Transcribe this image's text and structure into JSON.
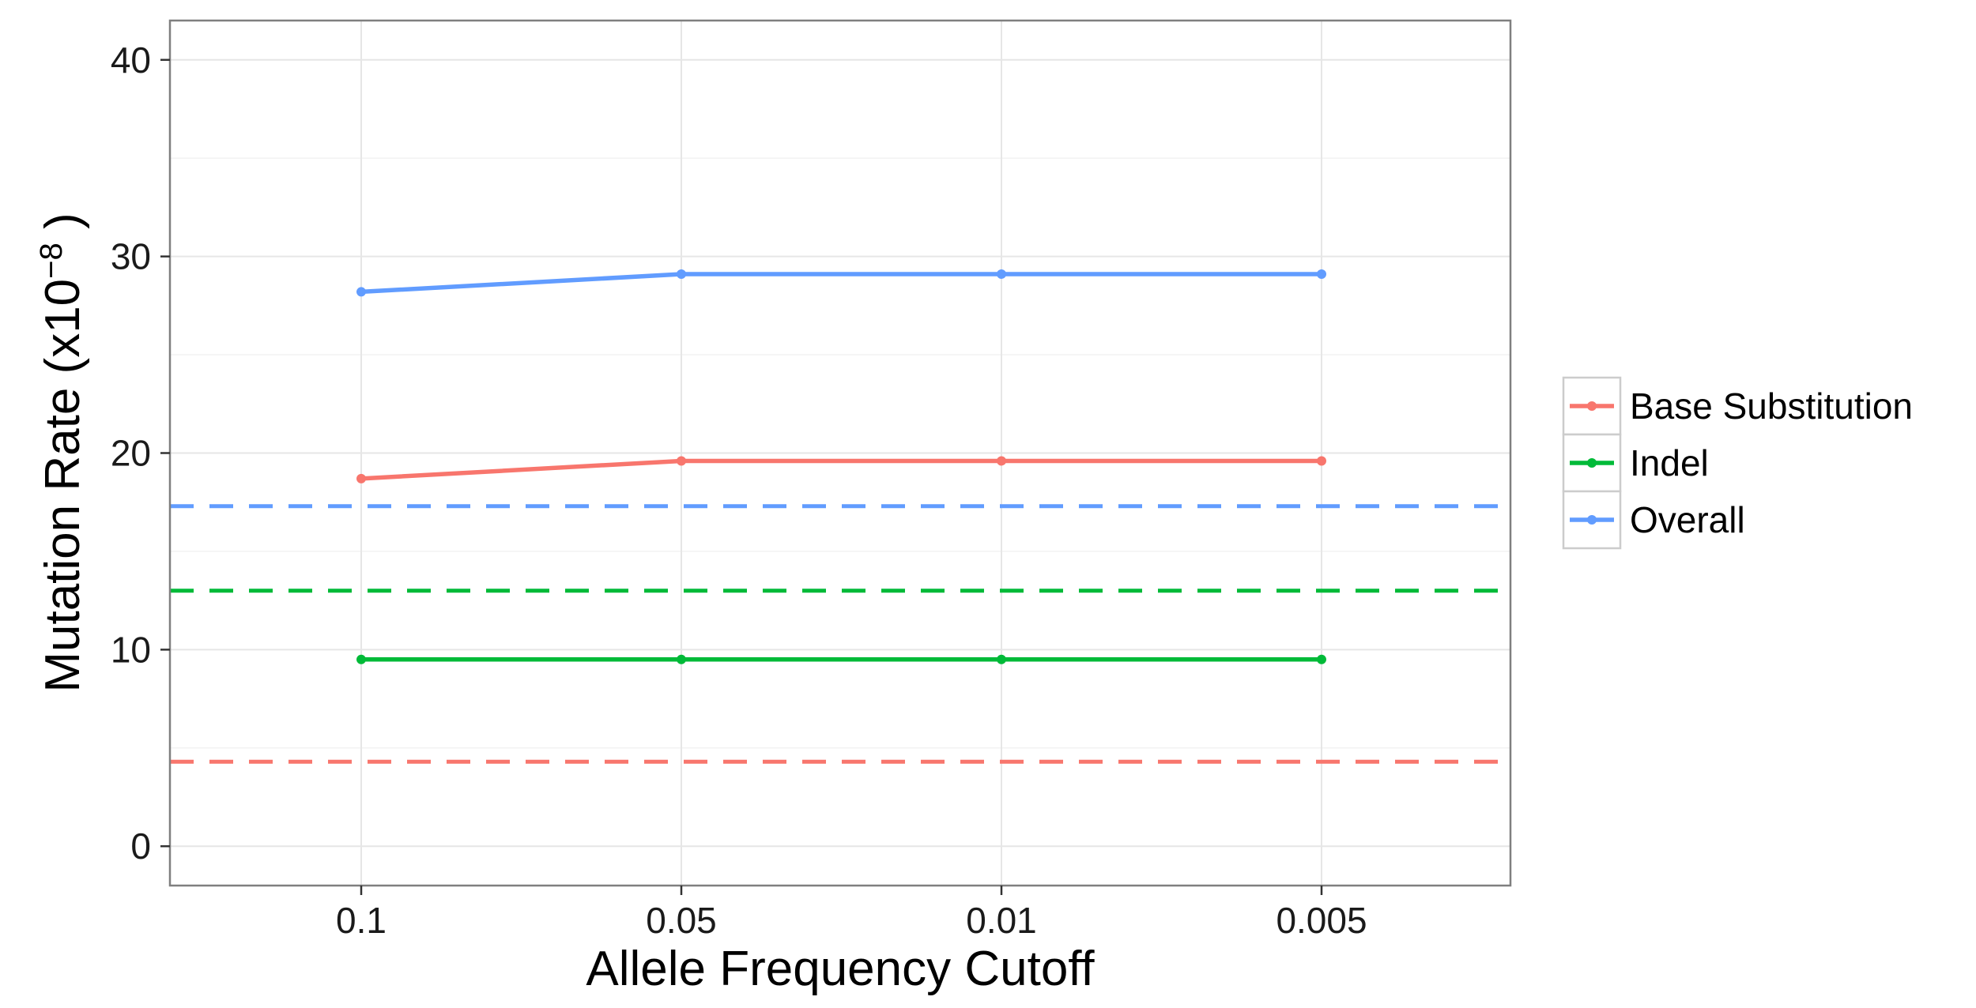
{
  "chart_data": {
    "type": "line",
    "xlabel": "Allele Frequency Cutoff",
    "ylabel": {
      "main": "Mutation Rate (x10",
      "superscript": "−8",
      "close": " )"
    },
    "categories": [
      "0.1",
      "0.05",
      "0.01",
      "0.005"
    ],
    "ylim": [
      -2,
      42
    ],
    "yticks": [
      0,
      10,
      20,
      30,
      40
    ],
    "grid": true,
    "legend_position": "right",
    "series": [
      {
        "name": "Base Substitution",
        "color": "#F8766D",
        "values": [
          18.7,
          19.6,
          19.6,
          19.6
        ],
        "reference": 4.3
      },
      {
        "name": "Indel",
        "color": "#00BA38",
        "values": [
          9.5,
          9.5,
          9.5,
          9.5
        ],
        "reference": 13.0
      },
      {
        "name": "Overall",
        "color": "#619CFF",
        "values": [
          28.2,
          29.1,
          29.1,
          29.1
        ],
        "reference": 17.3
      }
    ]
  }
}
